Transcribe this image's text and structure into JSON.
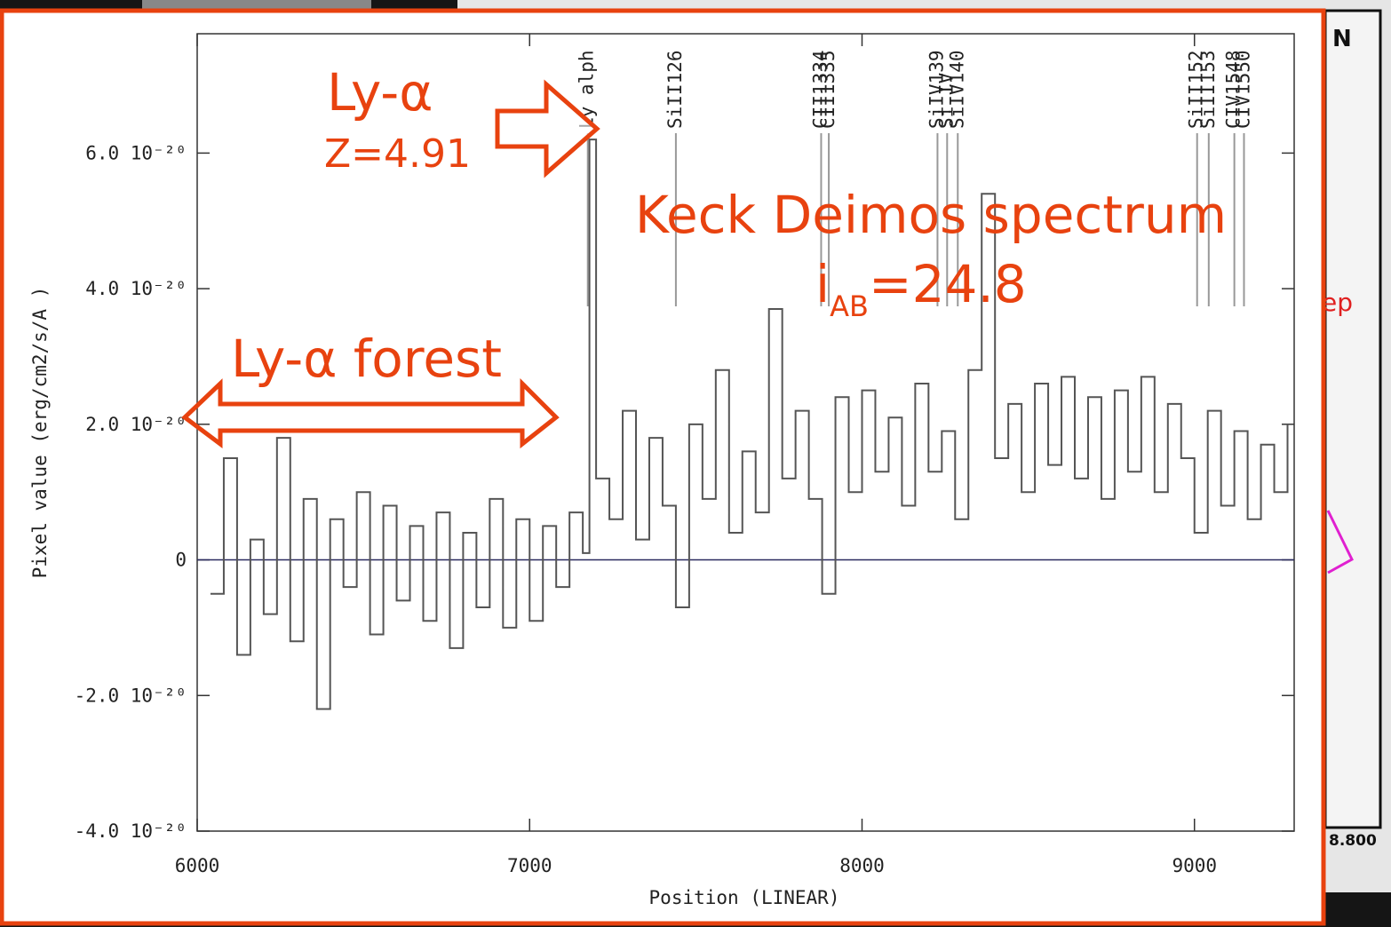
{
  "chart_data": {
    "type": "line",
    "xlabel": "Position (LINEAR)",
    "ylabel": "Pixel value (erg/cm2/s/A )",
    "xlim": [
      6000,
      9300
    ],
    "xticks": [
      6000,
      7000,
      8000,
      9000
    ],
    "ylim": [
      -4e-20,
      7.76e-20
    ],
    "yticks": [
      {
        "value": -4e-20,
        "label": "-4.0 10⁻²⁰"
      },
      {
        "value": -2e-20,
        "label": "-2.0 10⁻²⁰"
      },
      0,
      {
        "value": 2e-20,
        "label": "2.0 10⁻²⁰"
      },
      {
        "value": 4e-20,
        "label": "4.0 10⁻²⁰"
      },
      {
        "value": 6e-20,
        "label": "6.0 10⁻²⁰"
      }
    ],
    "hline": 0,
    "hline_color": "#2a2a60",
    "series": [
      {
        "color": "#555555",
        "x": [
          6040,
          6080,
          6120,
          6160,
          6200,
          6240,
          6280,
          6320,
          6360,
          6400,
          6440,
          6480,
          6520,
          6560,
          6600,
          6640,
          6680,
          6720,
          6760,
          6800,
          6840,
          6880,
          6920,
          6960,
          7000,
          7040,
          7080,
          7120,
          7160,
          7180,
          7200,
          7240,
          7280,
          7320,
          7360,
          7400,
          7440,
          7480,
          7520,
          7560,
          7600,
          7640,
          7680,
          7720,
          7760,
          7800,
          7840,
          7880,
          7920,
          7960,
          8000,
          8040,
          8080,
          8120,
          8160,
          8200,
          8240,
          8280,
          8320,
          8360,
          8400,
          8440,
          8480,
          8520,
          8560,
          8600,
          8640,
          8680,
          8720,
          8760,
          8800,
          8840,
          8880,
          8920,
          8960,
          9000,
          9040,
          9080,
          9120,
          9160,
          9200,
          9240,
          9280
        ],
        "values": [
          -5e-21,
          1.5e-20,
          -1.4e-20,
          3e-21,
          -8e-21,
          1.8e-20,
          -1.2e-20,
          9e-21,
          -2.2e-20,
          6e-21,
          -4e-21,
          1e-20,
          -1.1e-20,
          8e-21,
          -6e-21,
          5e-21,
          -9e-21,
          7e-21,
          -1.3e-20,
          4e-21,
          -7e-21,
          9e-21,
          -1e-20,
          6e-21,
          -9e-21,
          5e-21,
          -4e-21,
          7e-21,
          1e-21,
          6.2e-20,
          1.2e-20,
          6e-21,
          2.2e-20,
          3e-21,
          1.8e-20,
          8e-21,
          -7e-21,
          2e-20,
          9e-21,
          2.8e-20,
          4e-21,
          1.6e-20,
          7e-21,
          3.7e-20,
          1.2e-20,
          2.2e-20,
          9e-21,
          -5e-21,
          2.4e-20,
          1e-20,
          2.5e-20,
          1.3e-20,
          2.1e-20,
          8e-21,
          2.6e-20,
          1.3e-20,
          1.9e-20,
          6e-21,
          2.8e-20,
          5.4e-20,
          1.5e-20,
          2.3e-20,
          1e-20,
          2.6e-20,
          1.4e-20,
          2.7e-20,
          1.2e-20,
          2.4e-20,
          9e-21,
          2.5e-20,
          1.3e-20,
          2.7e-20,
          1e-20,
          2.3e-20,
          1.5e-20,
          4e-21,
          2.2e-20,
          8e-21,
          1.9e-20,
          6e-21,
          1.7e-20,
          1e-20,
          2e-20
        ]
      }
    ],
    "line_ids": [
      {
        "label": "Ly alph",
        "x": 7175
      },
      {
        "label": "SiII126",
        "x": 7440
      },
      {
        "label": "CII1334",
        "x": 7877
      },
      {
        "label": "CII1335",
        "x": 7900
      },
      {
        "label": "SiIV139",
        "x": 8227
      },
      {
        "label": "Si IV",
        "x": 8256
      },
      {
        "label": "SiIV140",
        "x": 8288
      },
      {
        "label": "SiII152",
        "x": 9008
      },
      {
        "label": "SiII153",
        "x": 9043
      },
      {
        "label": "CIV1548",
        "x": 9120
      },
      {
        "label": "CIV1550",
        "x": 9149
      }
    ],
    "annotations": {
      "lya": "Ly-α",
      "redshift": "Z=4.91",
      "title": "Keck Deimos spectrum",
      "mag_base": "i",
      "mag_sub": "AB",
      "mag_rest": "=24.8",
      "forest": "Ly-α forest"
    },
    "annotation_color": "#e8420f"
  },
  "backdrop": {
    "north": "N",
    "scale": "8.800",
    "fragment": "ep"
  }
}
